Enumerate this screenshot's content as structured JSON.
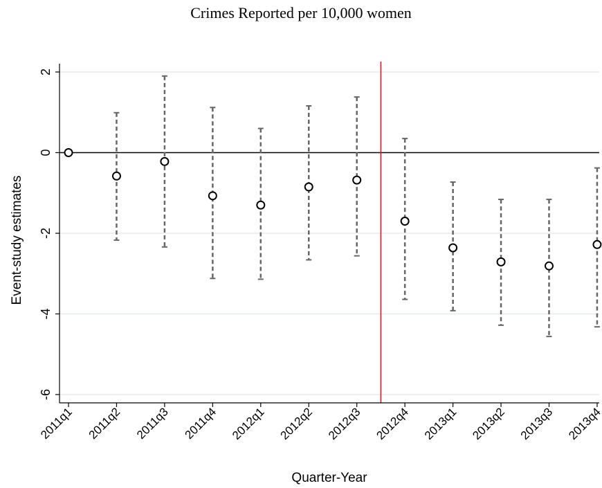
{
  "chart_data": {
    "type": "scatter",
    "title": "Crimes Reported per 10,000 women",
    "xlabel": "Quarter-Year",
    "ylabel": "Event-study estimates",
    "categories": [
      "2011q1",
      "2011q2",
      "2011q3",
      "2011q4",
      "2012q1",
      "2012q2",
      "2012q3",
      "2012q4",
      "2013q1",
      "2013q2",
      "2013q3",
      "2013q4"
    ],
    "series": [
      {
        "values": [
          0,
          -0.58,
          -0.22,
          -1.07,
          -1.3,
          -0.85,
          -0.68,
          -1.7,
          -2.36,
          -2.71,
          -2.81,
          -2.28
        ],
        "ci_low": [
          0,
          -2.17,
          -2.34,
          -3.12,
          -3.14,
          -2.66,
          -2.56,
          -3.64,
          -3.92,
          -4.28,
          -4.56,
          -4.32
        ],
        "ci_high": [
          0,
          0.99,
          1.9,
          1.12,
          0.6,
          1.16,
          1.38,
          0.35,
          -0.73,
          -1.16,
          -1.16,
          -0.38
        ]
      }
    ],
    "yticks": [
      2,
      0,
      -2,
      -4,
      -6
    ],
    "ylim": [
      -6.2,
      2.3
    ],
    "reference_lines": {
      "horizontal_y": 0,
      "vertical_between": [
        "2012q3",
        "2012q4"
      ]
    },
    "grid": "horizontal",
    "colors": {
      "points": "#000000",
      "ci": "#666666",
      "event_line": "#d6182b",
      "grid": "#e6ece8"
    }
  }
}
